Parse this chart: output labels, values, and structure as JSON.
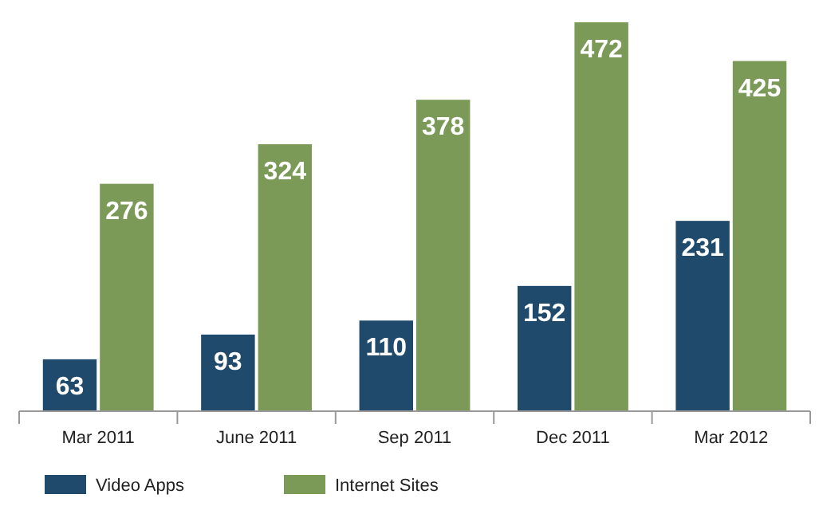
{
  "chart_data": {
    "type": "bar",
    "categories": [
      "Mar 2011",
      "June 2011",
      "Sep 2011",
      "Dec 2011",
      "Mar 2012"
    ],
    "series": [
      {
        "name": "Video Apps",
        "color": "#1f4a6b",
        "values": [
          63,
          93,
          110,
          152,
          231
        ]
      },
      {
        "name": "Internet Sites",
        "color": "#7b9957",
        "values": [
          276,
          324,
          378,
          472,
          425
        ]
      }
    ],
    "data_labels": true,
    "legend": "bottom"
  }
}
